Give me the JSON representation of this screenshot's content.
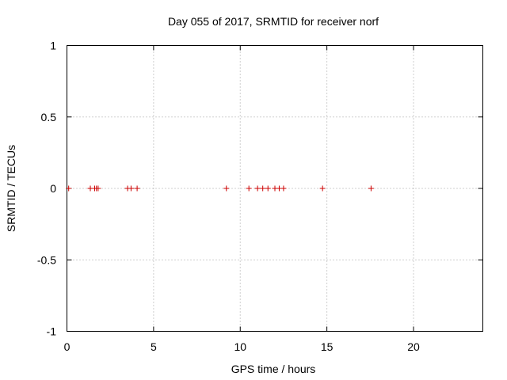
{
  "chart_data": {
    "type": "scatter",
    "title": "Day 055 of 2017, SRMTID for receiver norf",
    "xlabel": "GPS time / hours",
    "ylabel": "SRMTID / TECUs",
    "xlim": [
      0,
      24
    ],
    "ylim": [
      -1,
      1
    ],
    "xticks": [
      0,
      5,
      10,
      15,
      20
    ],
    "xtick_labels": [
      "0",
      "5",
      "10",
      "15",
      "20"
    ],
    "yticks": [
      -1,
      -0.5,
      0,
      0.5,
      1
    ],
    "ytick_labels": [
      "-1",
      "-0.5",
      "0",
      "0.5",
      "1"
    ],
    "grid": true,
    "marker": "+",
    "marker_color": "#cc0000",
    "series": [
      {
        "name": "SRMTID",
        "x": [
          0.1,
          1.35,
          1.6,
          1.7,
          1.8,
          3.5,
          3.7,
          4.05,
          9.2,
          10.5,
          11.0,
          11.3,
          11.6,
          12.0,
          12.25,
          12.5,
          14.75,
          17.55
        ],
        "y": [
          0,
          0,
          0,
          0,
          0,
          0,
          0,
          0,
          0,
          0,
          0,
          0,
          0,
          0,
          0,
          0,
          0,
          0
        ]
      }
    ]
  }
}
